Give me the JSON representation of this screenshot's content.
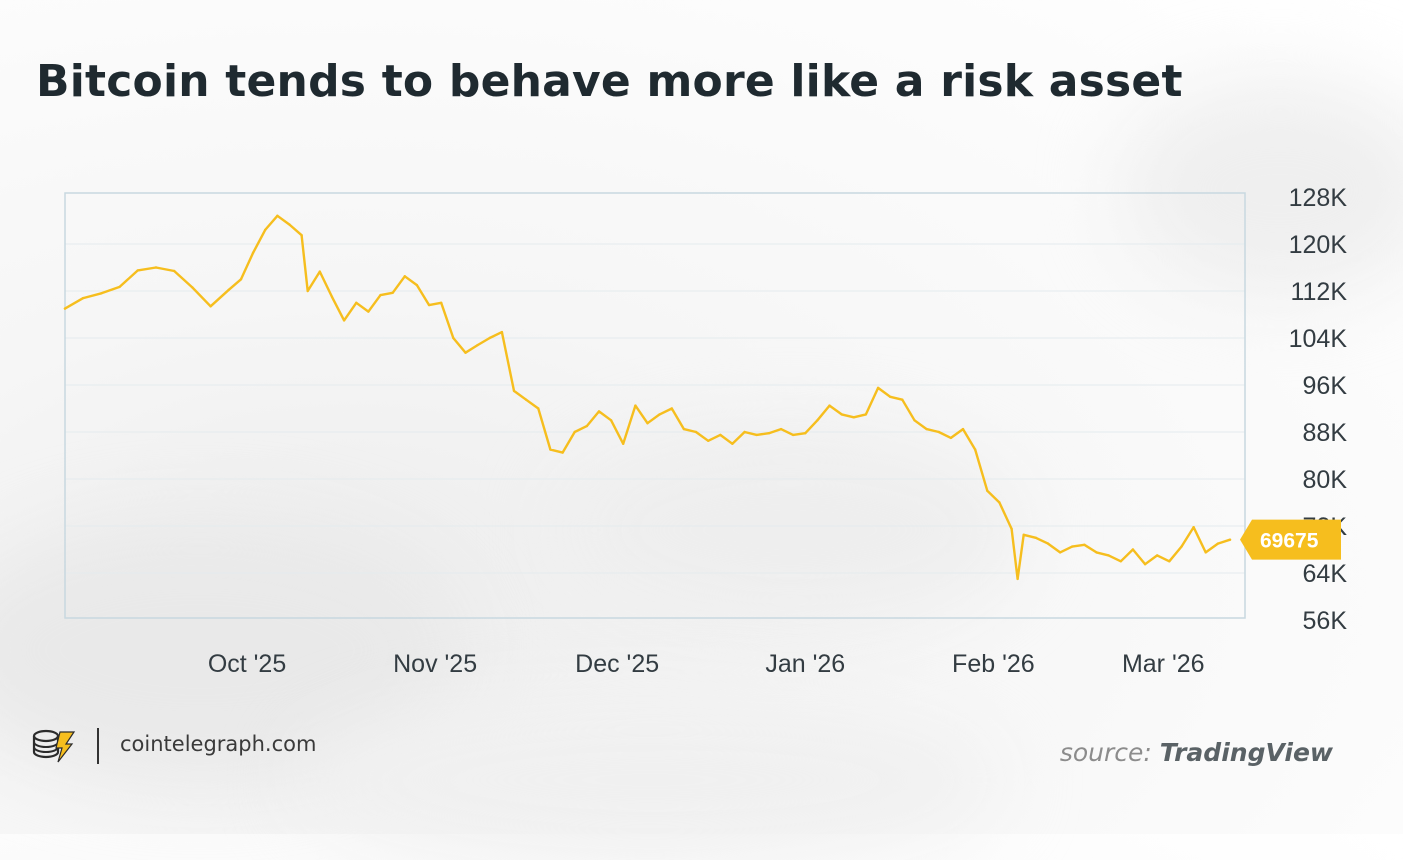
{
  "title": "Bitcoin tends to behave more like a risk asset",
  "footer": {
    "site": "cointelegraph.com",
    "source_prefix": "source:",
    "source_name": "TradingView",
    "logo_icon": "cointelegraph-logo-icon"
  },
  "colors": {
    "line": "#F6BE1E",
    "price_badge": "#F6BE1E",
    "frame": "#c8d8e0",
    "axis_text": "#333c42"
  },
  "chart_data": {
    "type": "line",
    "title": "Bitcoin tends to behave more like a risk asset",
    "xlabel": "",
    "ylabel": "",
    "y_ticks": [
      "128K",
      "120K",
      "112K",
      "104K",
      "96K",
      "88K",
      "80K",
      "72K",
      "64K",
      "56K"
    ],
    "ylim": [
      56000,
      128000
    ],
    "x_ticks": [
      "Oct '25",
      "Nov '25",
      "Dec '25",
      "Jan '26",
      "Feb '26",
      "Mar '26"
    ],
    "x_tick_dates": [
      "2025-10-01",
      "2025-11-01",
      "2025-12-01",
      "2026-01-01",
      "2026-02-01",
      "2026-03-01"
    ],
    "xlim": [
      "2025-09-01",
      "2026-03-12"
    ],
    "grid": true,
    "last_price_label": "69675",
    "series": [
      {
        "x": [
          "2025-09-01",
          "2025-09-04",
          "2025-09-07",
          "2025-09-10",
          "2025-09-13",
          "2025-09-16",
          "2025-09-19",
          "2025-09-22",
          "2025-09-25",
          "2025-09-28",
          "2025-09-30",
          "2025-10-02",
          "2025-10-04",
          "2025-10-06",
          "2025-10-08",
          "2025-10-10",
          "2025-10-11",
          "2025-10-13",
          "2025-10-15",
          "2025-10-17",
          "2025-10-19",
          "2025-10-21",
          "2025-10-23",
          "2025-10-25",
          "2025-10-27",
          "2025-10-29",
          "2025-10-31",
          "2025-11-02",
          "2025-11-04",
          "2025-11-06",
          "2025-11-08",
          "2025-11-10",
          "2025-11-12",
          "2025-11-14",
          "2025-11-16",
          "2025-11-18",
          "2025-11-20",
          "2025-11-22",
          "2025-11-24",
          "2025-11-26",
          "2025-11-28",
          "2025-11-30",
          "2025-12-02",
          "2025-12-04",
          "2025-12-06",
          "2025-12-08",
          "2025-12-10",
          "2025-12-12",
          "2025-12-14",
          "2025-12-16",
          "2025-12-18",
          "2025-12-20",
          "2025-12-22",
          "2025-12-24",
          "2025-12-26",
          "2025-12-28",
          "2025-12-30",
          "2026-01-01",
          "2026-01-03",
          "2026-01-05",
          "2026-01-07",
          "2026-01-09",
          "2026-01-11",
          "2026-01-13",
          "2026-01-15",
          "2026-01-17",
          "2026-01-19",
          "2026-01-21",
          "2026-01-23",
          "2026-01-25",
          "2026-01-27",
          "2026-01-29",
          "2026-01-31",
          "2026-02-02",
          "2026-02-04",
          "2026-02-05",
          "2026-02-06",
          "2026-02-08",
          "2026-02-10",
          "2026-02-12",
          "2026-02-14",
          "2026-02-16",
          "2026-02-18",
          "2026-02-20",
          "2026-02-22",
          "2026-02-24",
          "2026-02-26",
          "2026-02-28",
          "2026-03-02",
          "2026-03-04",
          "2026-03-06",
          "2026-03-08",
          "2026-03-10",
          "2026-03-12"
        ],
        "y": [
          109000,
          110800,
          111600,
          112700,
          115500,
          116000,
          115400,
          112600,
          109400,
          112200,
          114000,
          118500,
          122400,
          124800,
          123300,
          121500,
          112000,
          115300,
          111000,
          107000,
          110000,
          108500,
          111300,
          111700,
          114500,
          113000,
          109600,
          110000,
          104000,
          101500,
          102800,
          104000,
          105000,
          95000,
          93500,
          92000,
          85000,
          84500,
          88000,
          89000,
          91500,
          90000,
          86000,
          92500,
          89500,
          91000,
          92000,
          88500,
          88000,
          86500,
          87500,
          86000,
          88000,
          87500,
          87800,
          88500,
          87500,
          87800,
          90000,
          92500,
          91000,
          90500,
          91000,
          95500,
          94000,
          93500,
          90000,
          88500,
          88000,
          87000,
          88500,
          85000,
          78000,
          76000,
          71500,
          63000,
          70500,
          70000,
          69000,
          67500,
          68500,
          68800,
          67500,
          67000,
          66000,
          68000,
          65500,
          67000,
          66000,
          68500,
          71800,
          67500,
          69000,
          69675
        ]
      }
    ]
  }
}
